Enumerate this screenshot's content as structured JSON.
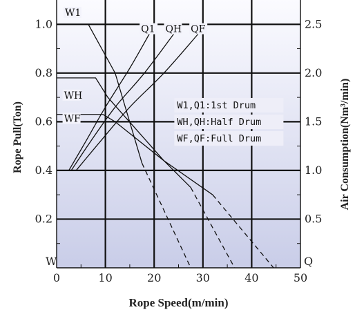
{
  "chart_data": {
    "type": "line",
    "xlabel": "Rope Speed(m/min)",
    "ylabel_left": "Rope Pull(Ton)",
    "ylabel_right": "Air Consumption(Nm³/min)",
    "xlim": [
      0,
      50
    ],
    "ylim_left": [
      0,
      1.1
    ],
    "ylim_right": [
      0,
      2.75
    ],
    "x_ticks": [
      "0",
      "10",
      "20",
      "30",
      "40",
      "50"
    ],
    "y_left_ticks": [
      "0.2",
      "0.4",
      "0.6",
      "0.8",
      "1.0"
    ],
    "y_right_ticks": [
      "0.5",
      "1.0",
      "1.5",
      "2.0",
      "2.5"
    ],
    "corner_left": "W",
    "corner_right": "Q",
    "grid": true,
    "legend": {
      "position": "center-right",
      "lines": [
        "W1,Q1:1st Drum",
        "WH,QH:Half Drum",
        "WF,QF:Full Drum"
      ]
    },
    "series": [
      {
        "name": "W1",
        "axis": "left",
        "style": "solid",
        "points": [
          [
            0,
            1.0
          ],
          [
            6.5,
            1.0
          ],
          [
            12,
            0.8
          ],
          [
            17.5,
            0.43
          ]
        ],
        "extension": {
          "style": "dashed",
          "points": [
            [
              17.5,
              0.43
            ],
            [
              27.5,
              0.0
            ]
          ]
        }
      },
      {
        "name": "WH",
        "axis": "left",
        "style": "solid",
        "points": [
          [
            0,
            0.78
          ],
          [
            8,
            0.78
          ],
          [
            10.5,
            0.7
          ],
          [
            22,
            0.44
          ],
          [
            27.5,
            0.33
          ]
        ],
        "extension": {
          "style": "dashed",
          "points": [
            [
              27.5,
              0.33
            ],
            [
              36.5,
              0.0
            ]
          ]
        }
      },
      {
        "name": "WF",
        "axis": "left",
        "style": "solid",
        "points": [
          [
            0,
            0.63
          ],
          [
            9.5,
            0.63
          ],
          [
            12,
            0.6
          ],
          [
            22,
            0.44
          ],
          [
            32,
            0.3
          ]
        ],
        "extension": {
          "style": "dashed",
          "points": [
            [
              32,
              0.3
            ],
            [
              44.5,
              0.0
            ]
          ]
        }
      },
      {
        "name": "Q1",
        "axis": "right",
        "style": "solid",
        "points": [
          [
            2.5,
            1.0
          ],
          [
            6,
            1.3
          ],
          [
            10,
            1.65
          ],
          [
            15,
            2.05
          ],
          [
            19,
            2.4
          ]
        ]
      },
      {
        "name": "QH",
        "axis": "right",
        "style": "solid",
        "points": [
          [
            3,
            1.0
          ],
          [
            7,
            1.3
          ],
          [
            12,
            1.65
          ],
          [
            18,
            2.0
          ],
          [
            24,
            2.4
          ]
        ]
      },
      {
        "name": "QF",
        "axis": "right",
        "style": "solid",
        "points": [
          [
            4,
            1.0
          ],
          [
            9,
            1.3
          ],
          [
            15,
            1.65
          ],
          [
            22,
            2.0
          ],
          [
            29,
            2.4
          ]
        ]
      }
    ]
  }
}
